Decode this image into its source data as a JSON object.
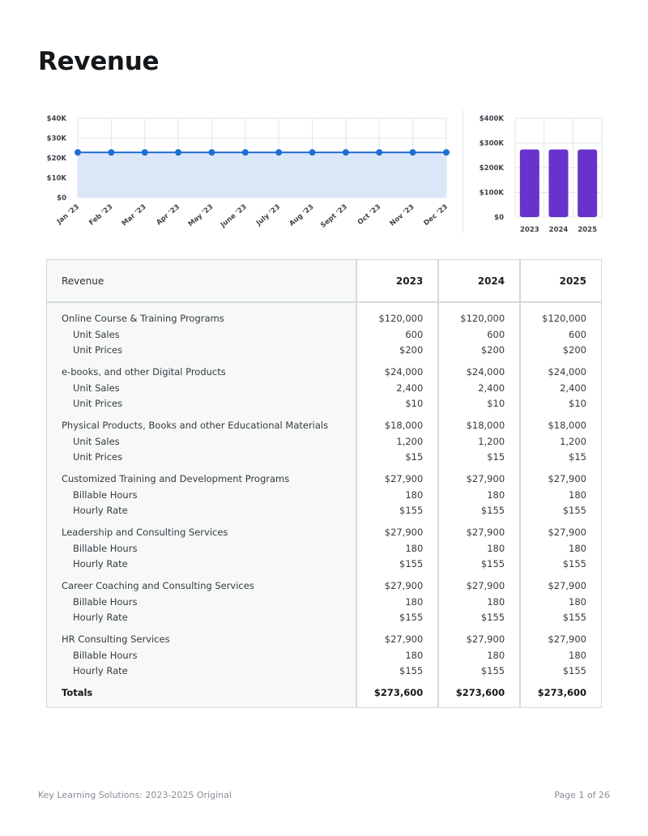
{
  "page": {
    "title": "Revenue",
    "footer_left": "Key Learning Solutions: 2023-2025 Original",
    "footer_right": "Page 1 of 26"
  },
  "chart_data": [
    {
      "type": "area",
      "title": "",
      "xlabel": "",
      "ylabel": "",
      "categories": [
        "Jan '23",
        "Feb '23",
        "Mar '23",
        "Apr '23",
        "May '23",
        "June '23",
        "July '23",
        "Aug '23",
        "Sept '23",
        "Oct '23",
        "Nov '23",
        "Dec '23"
      ],
      "series": [
        {
          "values": [
            22800,
            22800,
            22800,
            22800,
            22800,
            22800,
            22800,
            22800,
            22800,
            22800,
            22800,
            22800
          ]
        }
      ],
      "yticks": [
        "$0",
        "$10K",
        "$20K",
        "$30K",
        "$40K"
      ],
      "ylim": [
        0,
        40000
      ],
      "grid": true,
      "colors": {
        "line": "#1f6fd1",
        "fill": "#dbe7f8"
      }
    },
    {
      "type": "bar",
      "title": "",
      "xlabel": "",
      "ylabel": "",
      "categories": [
        "2023",
        "2024",
        "2025"
      ],
      "values": [
        273600,
        273600,
        273600
      ],
      "yticks": [
        "$0",
        "$100K",
        "$200K",
        "$300K",
        "$400K"
      ],
      "ylim": [
        0,
        400000
      ],
      "grid": true,
      "colors": {
        "bar": "#6633cc"
      }
    }
  ],
  "table": {
    "header": {
      "label": "Revenue",
      "years": [
        "2023",
        "2024",
        "2025"
      ]
    },
    "groups": [
      {
        "name": "Online Course & Training Programs",
        "values": [
          "$120,000",
          "$120,000",
          "$120,000"
        ],
        "rows": [
          {
            "label": "Unit Sales",
            "values": [
              "600",
              "600",
              "600"
            ]
          },
          {
            "label": "Unit Prices",
            "values": [
              "$200",
              "$200",
              "$200"
            ]
          }
        ]
      },
      {
        "name": "e-books, and other Digital Products",
        "values": [
          "$24,000",
          "$24,000",
          "$24,000"
        ],
        "rows": [
          {
            "label": "Unit Sales",
            "values": [
              "2,400",
              "2,400",
              "2,400"
            ]
          },
          {
            "label": "Unit Prices",
            "values": [
              "$10",
              "$10",
              "$10"
            ]
          }
        ]
      },
      {
        "name": "Physical Products, Books and other Educational Materials",
        "values": [
          "$18,000",
          "$18,000",
          "$18,000"
        ],
        "rows": [
          {
            "label": "Unit Sales",
            "values": [
              "1,200",
              "1,200",
              "1,200"
            ]
          },
          {
            "label": "Unit Prices",
            "values": [
              "$15",
              "$15",
              "$15"
            ]
          }
        ]
      },
      {
        "name": "Customized Training and Development Programs",
        "values": [
          "$27,900",
          "$27,900",
          "$27,900"
        ],
        "rows": [
          {
            "label": "Billable Hours",
            "values": [
              "180",
              "180",
              "180"
            ]
          },
          {
            "label": "Hourly Rate",
            "values": [
              "$155",
              "$155",
              "$155"
            ]
          }
        ]
      },
      {
        "name": "Leadership and Consulting Services",
        "values": [
          "$27,900",
          "$27,900",
          "$27,900"
        ],
        "rows": [
          {
            "label": "Billable Hours",
            "values": [
              "180",
              "180",
              "180"
            ]
          },
          {
            "label": "Hourly Rate",
            "values": [
              "$155",
              "$155",
              "$155"
            ]
          }
        ]
      },
      {
        "name": "Career Coaching and Consulting Services",
        "values": [
          "$27,900",
          "$27,900",
          "$27,900"
        ],
        "rows": [
          {
            "label": "Billable Hours",
            "values": [
              "180",
              "180",
              "180"
            ]
          },
          {
            "label": "Hourly Rate",
            "values": [
              "$155",
              "$155",
              "$155"
            ]
          }
        ]
      },
      {
        "name": "HR Consulting Services",
        "values": [
          "$27,900",
          "$27,900",
          "$27,900"
        ],
        "rows": [
          {
            "label": "Billable Hours",
            "values": [
              "180",
              "180",
              "180"
            ]
          },
          {
            "label": "Hourly Rate",
            "values": [
              "$155",
              "$155",
              "$155"
            ]
          }
        ]
      }
    ],
    "totals": {
      "label": "Totals",
      "values": [
        "$273,600",
        "$273,600",
        "$273,600"
      ]
    }
  }
}
